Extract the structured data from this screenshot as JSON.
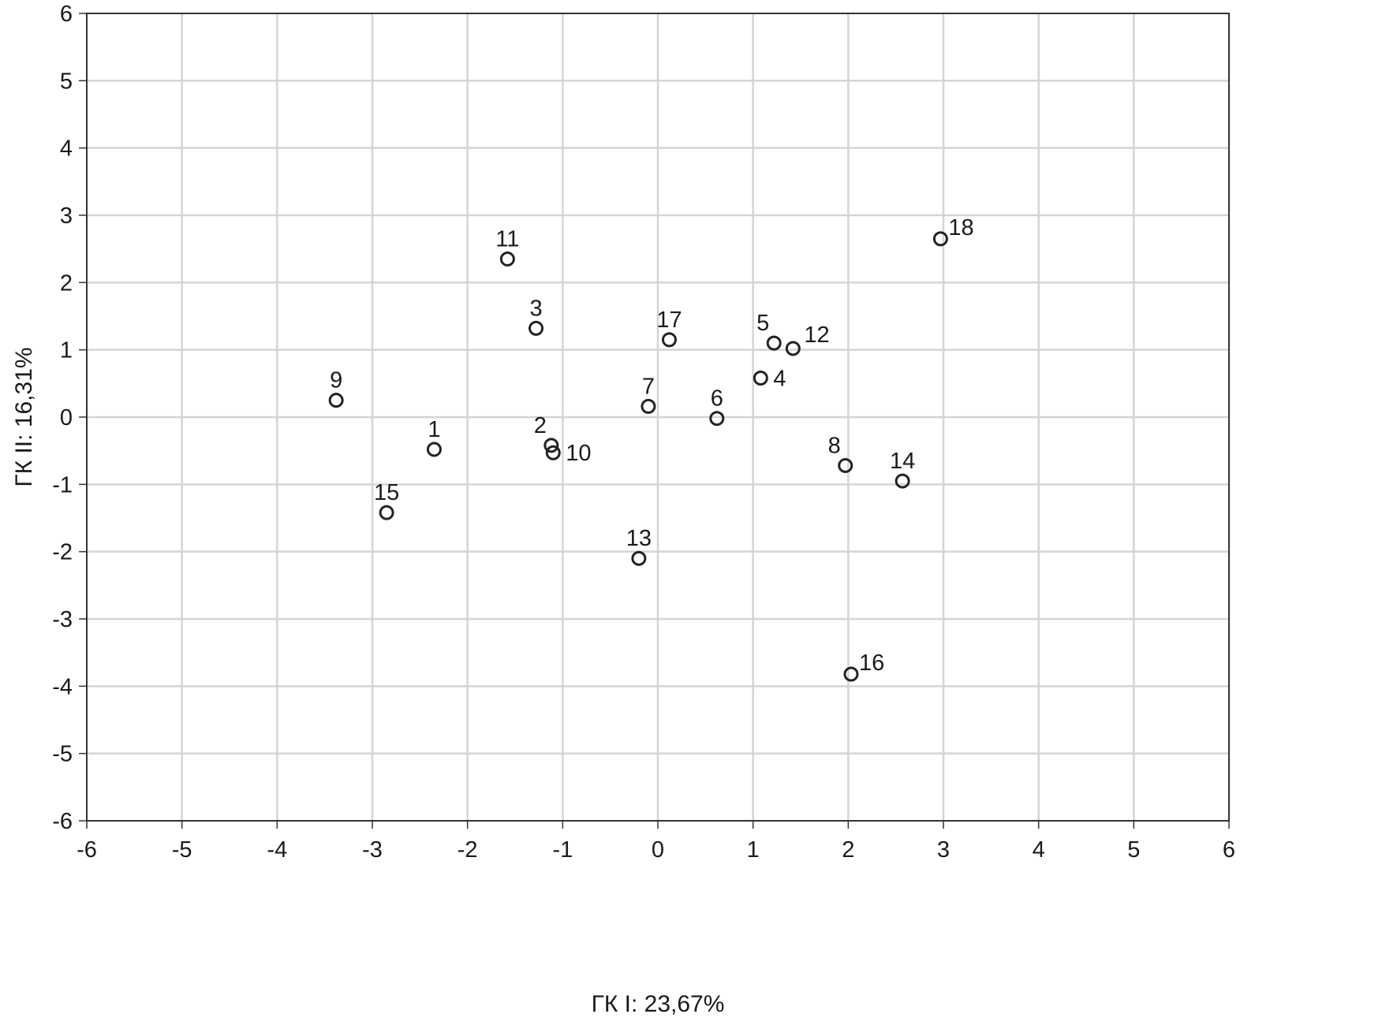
{
  "chart_data": {
    "type": "scatter",
    "title": "",
    "xlabel": "ГК I: 23,67%",
    "ylabel": "ГК II: 16,31%",
    "xlim": [
      -6,
      6
    ],
    "ylim": [
      -6,
      6
    ],
    "xticks": [
      -6,
      -5,
      -4,
      -3,
      -2,
      -1,
      0,
      1,
      2,
      3,
      4,
      5,
      6
    ],
    "yticks": [
      -6,
      -5,
      -4,
      -3,
      -2,
      -1,
      0,
      1,
      2,
      3,
      4,
      5,
      6
    ],
    "grid": true,
    "marker": "open-circle",
    "colors": {
      "marker": "#222222",
      "grid": "#d4d4d4",
      "frame": "#333333",
      "text": "#1a1a1a"
    },
    "points": [
      {
        "label": "1",
        "x": -2.35,
        "y": -0.48,
        "label_pos": "above"
      },
      {
        "label": "2",
        "x": -1.12,
        "y": -0.42,
        "label_pos": "above-left"
      },
      {
        "label": "3",
        "x": -1.28,
        "y": 1.32,
        "label_pos": "above"
      },
      {
        "label": "4",
        "x": 1.08,
        "y": 0.58,
        "label_pos": "right"
      },
      {
        "label": "5",
        "x": 1.22,
        "y": 1.1,
        "label_pos": "above-left"
      },
      {
        "label": "6",
        "x": 0.62,
        "y": -0.02,
        "label_pos": "above"
      },
      {
        "label": "7",
        "x": -0.1,
        "y": 0.16,
        "label_pos": "above"
      },
      {
        "label": "8",
        "x": 1.97,
        "y": -0.72,
        "label_pos": "above-left"
      },
      {
        "label": "9",
        "x": -3.38,
        "y": 0.25,
        "label_pos": "above"
      },
      {
        "label": "10",
        "x": -1.1,
        "y": -0.53,
        "label_pos": "right"
      },
      {
        "label": "11",
        "x": -1.58,
        "y": 2.35,
        "label_pos": "above"
      },
      {
        "label": "12",
        "x": 1.42,
        "y": 1.02,
        "label_pos": "above-right"
      },
      {
        "label": "13",
        "x": -0.2,
        "y": -2.1,
        "label_pos": "above"
      },
      {
        "label": "14",
        "x": 2.57,
        "y": -0.95,
        "label_pos": "above"
      },
      {
        "label": "15",
        "x": -2.85,
        "y": -1.42,
        "label_pos": "above"
      },
      {
        "label": "16",
        "x": 2.03,
        "y": -3.82,
        "label_pos": "upper-right"
      },
      {
        "label": "17",
        "x": 0.12,
        "y": 1.15,
        "label_pos": "above"
      },
      {
        "label": "18",
        "x": 2.97,
        "y": 2.65,
        "label_pos": "upper-right"
      }
    ]
  }
}
